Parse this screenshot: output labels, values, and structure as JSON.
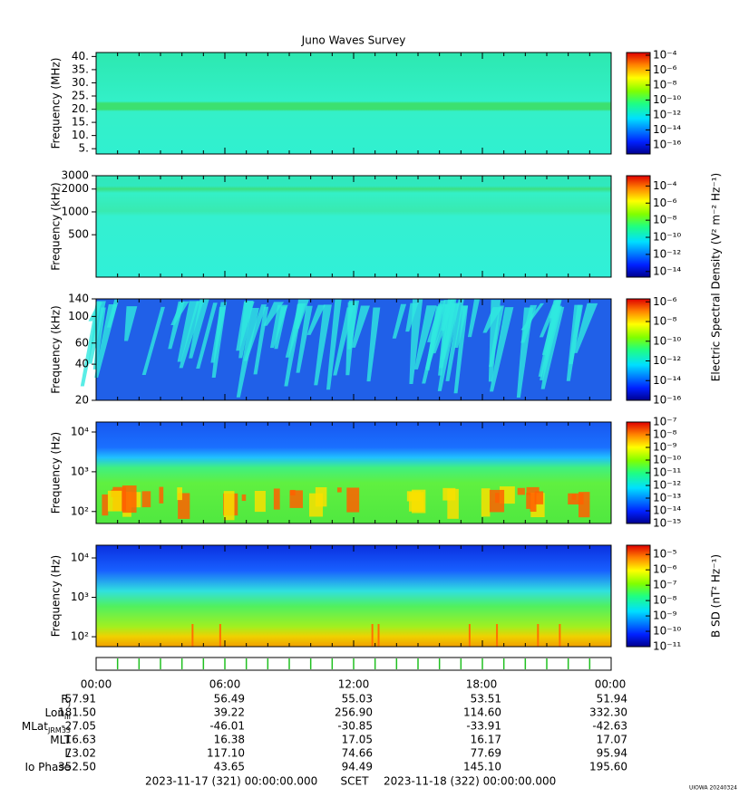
{
  "chart_data": {
    "type": "spectrogram",
    "title": "Juno Waves Survey",
    "panels": [
      {
        "ylabel": "Frequency (MHz)",
        "ylim": [
          3,
          41.5
        ],
        "log": false,
        "yticks": [
          {
            "value": 5,
            "label": "5."
          },
          {
            "value": 10,
            "label": "10."
          },
          {
            "value": 15,
            "label": "15."
          },
          {
            "value": 20,
            "label": "20."
          },
          {
            "value": 25,
            "label": "25."
          },
          {
            "value": 30,
            "label": "30."
          },
          {
            "value": 35,
            "label": "35."
          },
          {
            "value": 40,
            "label": "40."
          }
        ],
        "clim": [
          6e-18,
          0.00023
        ],
        "cticks": [
          {
            "value": 0.0001,
            "label": "10⁻⁴"
          },
          {
            "value": 1e-06,
            "label": "10⁻⁶"
          },
          {
            "value": 1e-08,
            "label": "10⁻⁸"
          },
          {
            "value": 1e-10,
            "label": "10⁻¹⁰"
          },
          {
            "value": 1e-12,
            "label": "10⁻¹²"
          },
          {
            "value": 1e-14,
            "label": "10⁻¹⁴"
          },
          {
            "value": 1e-16,
            "label": "10⁻¹⁶"
          }
        ]
      },
      {
        "ylabel": "Frequency (kHz)",
        "ylim": [
          138,
          3000
        ],
        "log": true,
        "yticks": [
          500,
          1000,
          2000,
          3000
        ],
        "clim": [
          2.2e-15,
          0.0016
        ],
        "cticks": [
          {
            "value": 0.0001,
            "label": "10⁻⁴"
          },
          {
            "value": 1e-06,
            "label": "10⁻⁶"
          },
          {
            "value": 1e-08,
            "label": "10⁻⁸"
          },
          {
            "value": 1e-10,
            "label": "10⁻¹⁰"
          },
          {
            "value": 1e-12,
            "label": "10⁻¹²"
          },
          {
            "value": 1e-14,
            "label": "10⁻¹⁴"
          }
        ]
      },
      {
        "ylabel": "Frequency (kHz)",
        "ylim": [
          20,
          140
        ],
        "log": true,
        "yticks": [
          20,
          40,
          60,
          100,
          140
        ],
        "clim": [
          1e-16,
          2e-06
        ],
        "cticks": [
          {
            "value": 1e-06,
            "label": "10⁻⁶"
          },
          {
            "value": 1e-08,
            "label": "10⁻⁸"
          },
          {
            "value": 1e-10,
            "label": "10⁻¹⁰"
          },
          {
            "value": 1e-12,
            "label": "10⁻¹²"
          },
          {
            "value": 1e-14,
            "label": "10⁻¹⁴"
          },
          {
            "value": 1e-16,
            "label": "10⁻¹⁶"
          }
        ]
      },
      {
        "ylabel": "Frequency (Hz)",
        "ylim": [
          50,
          17800
        ],
        "log": true,
        "yticks": [
          {
            "value": 100,
            "label": "10²"
          },
          {
            "value": 1000,
            "label": "10³"
          },
          {
            "value": 10000,
            "label": "10⁴"
          }
        ],
        "clim": [
          1e-15,
          1e-07
        ],
        "cticks": [
          {
            "value": 1e-07,
            "label": "10⁻⁷"
          },
          {
            "value": 1e-08,
            "label": "10⁻⁸"
          },
          {
            "value": 1e-09,
            "label": "10⁻⁹"
          },
          {
            "value": 1e-10,
            "label": "10⁻¹⁰"
          },
          {
            "value": 1e-11,
            "label": "10⁻¹¹"
          },
          {
            "value": 1e-12,
            "label": "10⁻¹²"
          },
          {
            "value": 1e-13,
            "label": "10⁻¹³"
          },
          {
            "value": 1e-14,
            "label": "10⁻¹⁴"
          },
          {
            "value": 1e-15,
            "label": "10⁻¹⁵"
          }
        ]
      },
      {
        "ylabel": "Frequency (Hz)",
        "ylim": [
          56,
          21000
        ],
        "log": true,
        "yticks": [
          {
            "value": 100,
            "label": "10²"
          },
          {
            "value": 1000,
            "label": "10³"
          },
          {
            "value": 10000,
            "label": "10⁴"
          }
        ],
        "clim": [
          1e-11,
          4e-05
        ],
        "cticks": [
          {
            "value": 1e-05,
            "label": "10⁻⁵"
          },
          {
            "value": 1e-06,
            "label": "10⁻⁶"
          },
          {
            "value": 1e-07,
            "label": "10⁻⁷"
          },
          {
            "value": 1e-08,
            "label": "10⁻⁸"
          },
          {
            "value": 1e-09,
            "label": "10⁻⁹"
          },
          {
            "value": 1e-10,
            "label": "10⁻¹⁰"
          },
          {
            "value": 1e-11,
            "label": "10⁻¹¹"
          }
        ]
      }
    ],
    "colorbar_label_e": "Electric Spectral Density (V² m⁻² Hz⁻¹)",
    "colorbar_label_b": "B SD (nT² Hz⁻¹)",
    "times": [
      "00:00",
      "06:00",
      "12:00",
      "18:00",
      "00:00"
    ],
    "ephemeris": [
      {
        "label": "R",
        "sub": "J",
        "values": [
          57.91,
          56.49,
          55.03,
          53.51,
          51.94
        ],
        "value_labels": [
          "57.91",
          "56.49",
          "55.03",
          "53.51",
          "51.94"
        ]
      },
      {
        "label": "Lon",
        "sub": "III",
        "values": [
          181.5,
          39.22,
          256.9,
          114.6,
          332.3
        ],
        "value_labels": [
          "181.50",
          "39.22",
          "256.90",
          "114.60",
          "332.30"
        ]
      },
      {
        "label": "MLat",
        "sub": "JRM33",
        "values": [
          -27.05,
          -46.01,
          -30.85,
          -33.91,
          -42.63
        ],
        "value_labels": [
          "-27.05",
          "-46.01",
          "-30.85",
          "-33.91",
          "-42.63"
        ]
      },
      {
        "label": "MLT",
        "values": [
          16.63,
          16.38,
          17.05,
          16.17,
          17.07
        ],
        "value_labels": [
          "16.63",
          "16.38",
          "17.05",
          "16.17",
          "17.07"
        ]
      },
      {
        "label": "L",
        "values": [
          73.02,
          117.1,
          74.66,
          77.69,
          95.94
        ],
        "value_labels": [
          "73.02",
          "117.10",
          "74.66",
          "77.69",
          "95.94"
        ]
      },
      {
        "label": "Io Phase",
        "values": [
          352.5,
          43.65,
          94.49,
          145.1,
          195.6
        ],
        "value_labels": [
          "352.50",
          "43.65",
          "94.49",
          "145.10",
          "195.60"
        ]
      }
    ],
    "start": "2023-11-17 (321) 00:00:00.000",
    "scet": "SCET",
    "end": "2023-11-18 (322) 00:00:00.000",
    "stamp": "UIOWA 20240324"
  }
}
